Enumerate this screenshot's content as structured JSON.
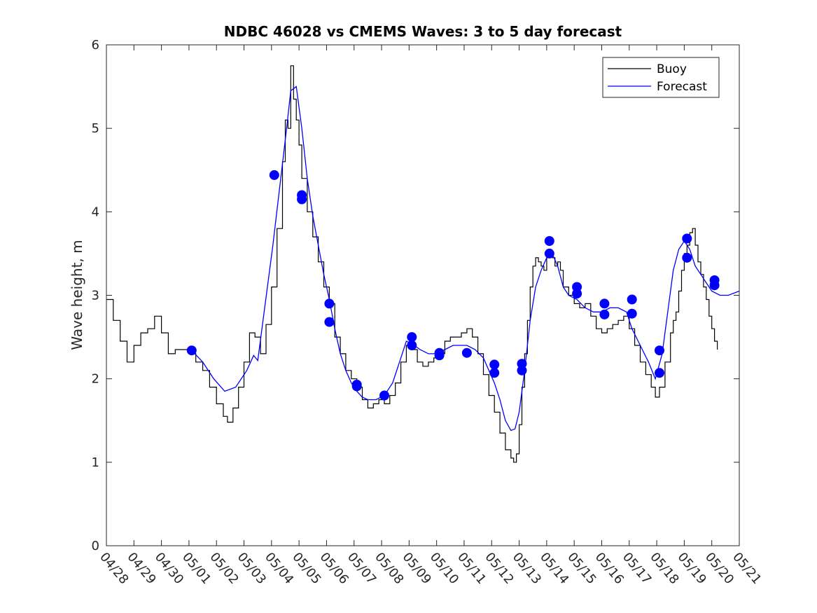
{
  "chart_data": {
    "type": "line",
    "title": "NDBC 46028 vs CMEMS Waves: 3 to 5 day forecast",
    "xlabel": "",
    "ylabel": "Wave height, m",
    "ylim": [
      0,
      6
    ],
    "yticks": [
      0,
      1,
      2,
      3,
      4,
      5,
      6
    ],
    "xlim_days": [
      0,
      23
    ],
    "xtick_labels": [
      "04/28",
      "04/29",
      "04/30",
      "05/01",
      "05/02",
      "05/03",
      "05/04",
      "05/05",
      "05/06",
      "05/07",
      "05/08",
      "05/09",
      "05/10",
      "05/11",
      "05/12",
      "05/13",
      "05/14",
      "05/15",
      "05/16",
      "05/17",
      "05/18",
      "05/19",
      "05/20",
      "05/21"
    ],
    "legend_position": "top-right",
    "grid": false,
    "colors": {
      "buoy": "#000000",
      "forecast": "#0000ff",
      "marker": "#0000ff"
    },
    "series": [
      {
        "name": "Buoy",
        "color": "#000000",
        "points": [
          [
            0.0,
            2.95
          ],
          [
            0.25,
            2.7
          ],
          [
            0.5,
            2.45
          ],
          [
            0.75,
            2.2
          ],
          [
            1.0,
            2.4
          ],
          [
            1.25,
            2.55
          ],
          [
            1.5,
            2.6
          ],
          [
            1.75,
            2.75
          ],
          [
            2.0,
            2.55
          ],
          [
            2.25,
            2.3
          ],
          [
            2.5,
            2.35
          ],
          [
            2.75,
            2.35
          ],
          [
            3.0,
            2.3
          ],
          [
            3.25,
            2.2
          ],
          [
            3.5,
            2.1
          ],
          [
            3.75,
            1.9
          ],
          [
            4.0,
            1.7
          ],
          [
            4.25,
            1.55
          ],
          [
            4.4,
            1.48
          ],
          [
            4.6,
            1.65
          ],
          [
            4.8,
            1.9
          ],
          [
            5.0,
            2.2
          ],
          [
            5.2,
            2.55
          ],
          [
            5.4,
            2.5
          ],
          [
            5.6,
            2.3
          ],
          [
            5.8,
            2.65
          ],
          [
            6.0,
            3.1
          ],
          [
            6.2,
            3.8
          ],
          [
            6.4,
            4.6
          ],
          [
            6.5,
            5.1
          ],
          [
            6.6,
            5.0
          ],
          [
            6.7,
            5.75
          ],
          [
            6.8,
            5.35
          ],
          [
            6.9,
            5.1
          ],
          [
            7.0,
            4.8
          ],
          [
            7.1,
            4.4
          ],
          [
            7.3,
            4.0
          ],
          [
            7.5,
            3.7
          ],
          [
            7.7,
            3.4
          ],
          [
            7.9,
            3.1
          ],
          [
            8.1,
            2.9
          ],
          [
            8.3,
            2.5
          ],
          [
            8.5,
            2.3
          ],
          [
            8.7,
            2.1
          ],
          [
            8.9,
            2.0
          ],
          [
            9.1,
            1.9
          ],
          [
            9.3,
            1.75
          ],
          [
            9.5,
            1.65
          ],
          [
            9.7,
            1.7
          ],
          [
            9.9,
            1.75
          ],
          [
            10.1,
            1.7
          ],
          [
            10.3,
            1.8
          ],
          [
            10.5,
            1.95
          ],
          [
            10.7,
            2.2
          ],
          [
            10.9,
            2.4
          ],
          [
            11.1,
            2.35
          ],
          [
            11.3,
            2.2
          ],
          [
            11.5,
            2.15
          ],
          [
            11.7,
            2.2
          ],
          [
            11.9,
            2.25
          ],
          [
            12.1,
            2.3
          ],
          [
            12.3,
            2.45
          ],
          [
            12.5,
            2.5
          ],
          [
            12.7,
            2.5
          ],
          [
            12.9,
            2.55
          ],
          [
            13.1,
            2.6
          ],
          [
            13.3,
            2.5
          ],
          [
            13.5,
            2.3
          ],
          [
            13.7,
            2.05
          ],
          [
            13.9,
            1.8
          ],
          [
            14.1,
            1.6
          ],
          [
            14.3,
            1.35
          ],
          [
            14.5,
            1.15
          ],
          [
            14.7,
            1.05
          ],
          [
            14.8,
            1.0
          ],
          [
            14.9,
            1.1
          ],
          [
            15.0,
            1.45
          ],
          [
            15.1,
            1.9
          ],
          [
            15.2,
            2.3
          ],
          [
            15.3,
            2.7
          ],
          [
            15.4,
            3.1
          ],
          [
            15.5,
            3.35
          ],
          [
            15.6,
            3.45
          ],
          [
            15.7,
            3.4
          ],
          [
            15.8,
            3.35
          ],
          [
            15.9,
            3.3
          ],
          [
            16.0,
            3.45
          ],
          [
            16.1,
            3.5
          ],
          [
            16.2,
            3.45
          ],
          [
            16.3,
            3.35
          ],
          [
            16.4,
            3.4
          ],
          [
            16.5,
            3.3
          ],
          [
            16.6,
            3.1
          ],
          [
            16.8,
            3.0
          ],
          [
            17.0,
            2.9
          ],
          [
            17.2,
            2.85
          ],
          [
            17.4,
            2.9
          ],
          [
            17.6,
            2.75
          ],
          [
            17.8,
            2.6
          ],
          [
            18.0,
            2.55
          ],
          [
            18.2,
            2.6
          ],
          [
            18.4,
            2.65
          ],
          [
            18.6,
            2.7
          ],
          [
            18.8,
            2.75
          ],
          [
            19.0,
            2.6
          ],
          [
            19.2,
            2.4
          ],
          [
            19.4,
            2.2
          ],
          [
            19.6,
            2.05
          ],
          [
            19.8,
            1.9
          ],
          [
            19.95,
            1.78
          ],
          [
            20.1,
            1.9
          ],
          [
            20.3,
            2.2
          ],
          [
            20.5,
            2.55
          ],
          [
            20.6,
            2.7
          ],
          [
            20.7,
            2.8
          ],
          [
            20.8,
            3.05
          ],
          [
            20.9,
            3.3
          ],
          [
            21.0,
            3.5
          ],
          [
            21.1,
            3.6
          ],
          [
            21.2,
            3.75
          ],
          [
            21.3,
            3.8
          ],
          [
            21.4,
            3.6
          ],
          [
            21.5,
            3.4
          ],
          [
            21.6,
            3.25
          ],
          [
            21.7,
            3.1
          ],
          [
            21.8,
            2.95
          ],
          [
            21.9,
            2.75
          ],
          [
            22.0,
            2.6
          ],
          [
            22.1,
            2.45
          ],
          [
            22.2,
            2.35
          ]
        ]
      },
      {
        "name": "Forecast",
        "color": "#0000ff",
        "points": [
          [
            3.1,
            2.34
          ],
          [
            3.5,
            2.2
          ],
          [
            3.9,
            2.0
          ],
          [
            4.3,
            1.85
          ],
          [
            4.7,
            1.9
          ],
          [
            5.1,
            2.1
          ],
          [
            5.35,
            2.28
          ],
          [
            5.5,
            2.22
          ],
          [
            6.05,
            3.6
          ],
          [
            6.3,
            4.3
          ],
          [
            6.55,
            5.0
          ],
          [
            6.7,
            5.45
          ],
          [
            6.9,
            5.5
          ],
          [
            7.1,
            5.0
          ],
          [
            7.3,
            4.4
          ],
          [
            7.5,
            3.95
          ],
          [
            7.7,
            3.6
          ],
          [
            7.9,
            3.25
          ],
          [
            8.1,
            2.95
          ],
          [
            8.3,
            2.6
          ],
          [
            8.5,
            2.3
          ],
          [
            8.7,
            2.1
          ],
          [
            8.9,
            1.95
          ],
          [
            9.1,
            1.85
          ],
          [
            9.3,
            1.78
          ],
          [
            9.5,
            1.75
          ],
          [
            9.8,
            1.75
          ],
          [
            10.1,
            1.8
          ],
          [
            10.4,
            1.95
          ],
          [
            10.7,
            2.25
          ],
          [
            10.9,
            2.45
          ],
          [
            11.1,
            2.42
          ],
          [
            11.4,
            2.35
          ],
          [
            11.7,
            2.3
          ],
          [
            12.0,
            2.3
          ],
          [
            12.3,
            2.35
          ],
          [
            12.6,
            2.4
          ],
          [
            12.9,
            2.4
          ],
          [
            13.1,
            2.4
          ],
          [
            13.4,
            2.35
          ],
          [
            13.7,
            2.25
          ],
          [
            13.9,
            2.1
          ],
          [
            14.1,
            1.95
          ],
          [
            14.3,
            1.75
          ],
          [
            14.5,
            1.5
          ],
          [
            14.7,
            1.38
          ],
          [
            14.85,
            1.4
          ],
          [
            15.0,
            1.6
          ],
          [
            15.2,
            2.1
          ],
          [
            15.4,
            2.7
          ],
          [
            15.6,
            3.1
          ],
          [
            15.8,
            3.3
          ],
          [
            16.0,
            3.45
          ],
          [
            16.2,
            3.5
          ],
          [
            16.4,
            3.35
          ],
          [
            16.6,
            3.1
          ],
          [
            16.8,
            3.0
          ],
          [
            17.1,
            2.95
          ],
          [
            17.4,
            2.85
          ],
          [
            17.7,
            2.8
          ],
          [
            18.0,
            2.8
          ],
          [
            18.3,
            2.85
          ],
          [
            18.6,
            2.85
          ],
          [
            18.9,
            2.8
          ],
          [
            19.1,
            2.6
          ],
          [
            19.4,
            2.4
          ],
          [
            19.7,
            2.2
          ],
          [
            19.95,
            2.0
          ],
          [
            20.2,
            2.3
          ],
          [
            20.4,
            2.8
          ],
          [
            20.6,
            3.3
          ],
          [
            20.8,
            3.55
          ],
          [
            21.0,
            3.65
          ],
          [
            21.2,
            3.55
          ],
          [
            21.4,
            3.35
          ],
          [
            21.6,
            3.25
          ],
          [
            21.8,
            3.15
          ],
          [
            22.0,
            3.05
          ],
          [
            22.3,
            3.0
          ],
          [
            22.6,
            3.0
          ],
          [
            23.0,
            3.05
          ]
        ]
      }
    ],
    "forecast_markers": [
      [
        3.1,
        2.34
      ],
      [
        6.1,
        4.44
      ],
      [
        7.1,
        4.2
      ],
      [
        7.1,
        4.15
      ],
      [
        8.1,
        2.9
      ],
      [
        8.1,
        2.68
      ],
      [
        9.1,
        1.93
      ],
      [
        9.1,
        1.91
      ],
      [
        10.1,
        1.8
      ],
      [
        11.1,
        2.5
      ],
      [
        11.1,
        2.4
      ],
      [
        12.1,
        2.31
      ],
      [
        12.1,
        2.28
      ],
      [
        13.1,
        2.31
      ],
      [
        14.1,
        2.17
      ],
      [
        14.1,
        2.07
      ],
      [
        15.1,
        2.18
      ],
      [
        15.1,
        2.1
      ],
      [
        16.1,
        3.65
      ],
      [
        16.1,
        3.5
      ],
      [
        17.1,
        3.1
      ],
      [
        17.1,
        3.02
      ],
      [
        18.1,
        2.9
      ],
      [
        18.1,
        2.77
      ],
      [
        19.1,
        2.95
      ],
      [
        19.1,
        2.78
      ],
      [
        20.1,
        2.34
      ],
      [
        20.1,
        2.07
      ],
      [
        21.1,
        3.68
      ],
      [
        21.1,
        3.45
      ],
      [
        22.1,
        3.18
      ],
      [
        22.1,
        3.12
      ]
    ]
  }
}
